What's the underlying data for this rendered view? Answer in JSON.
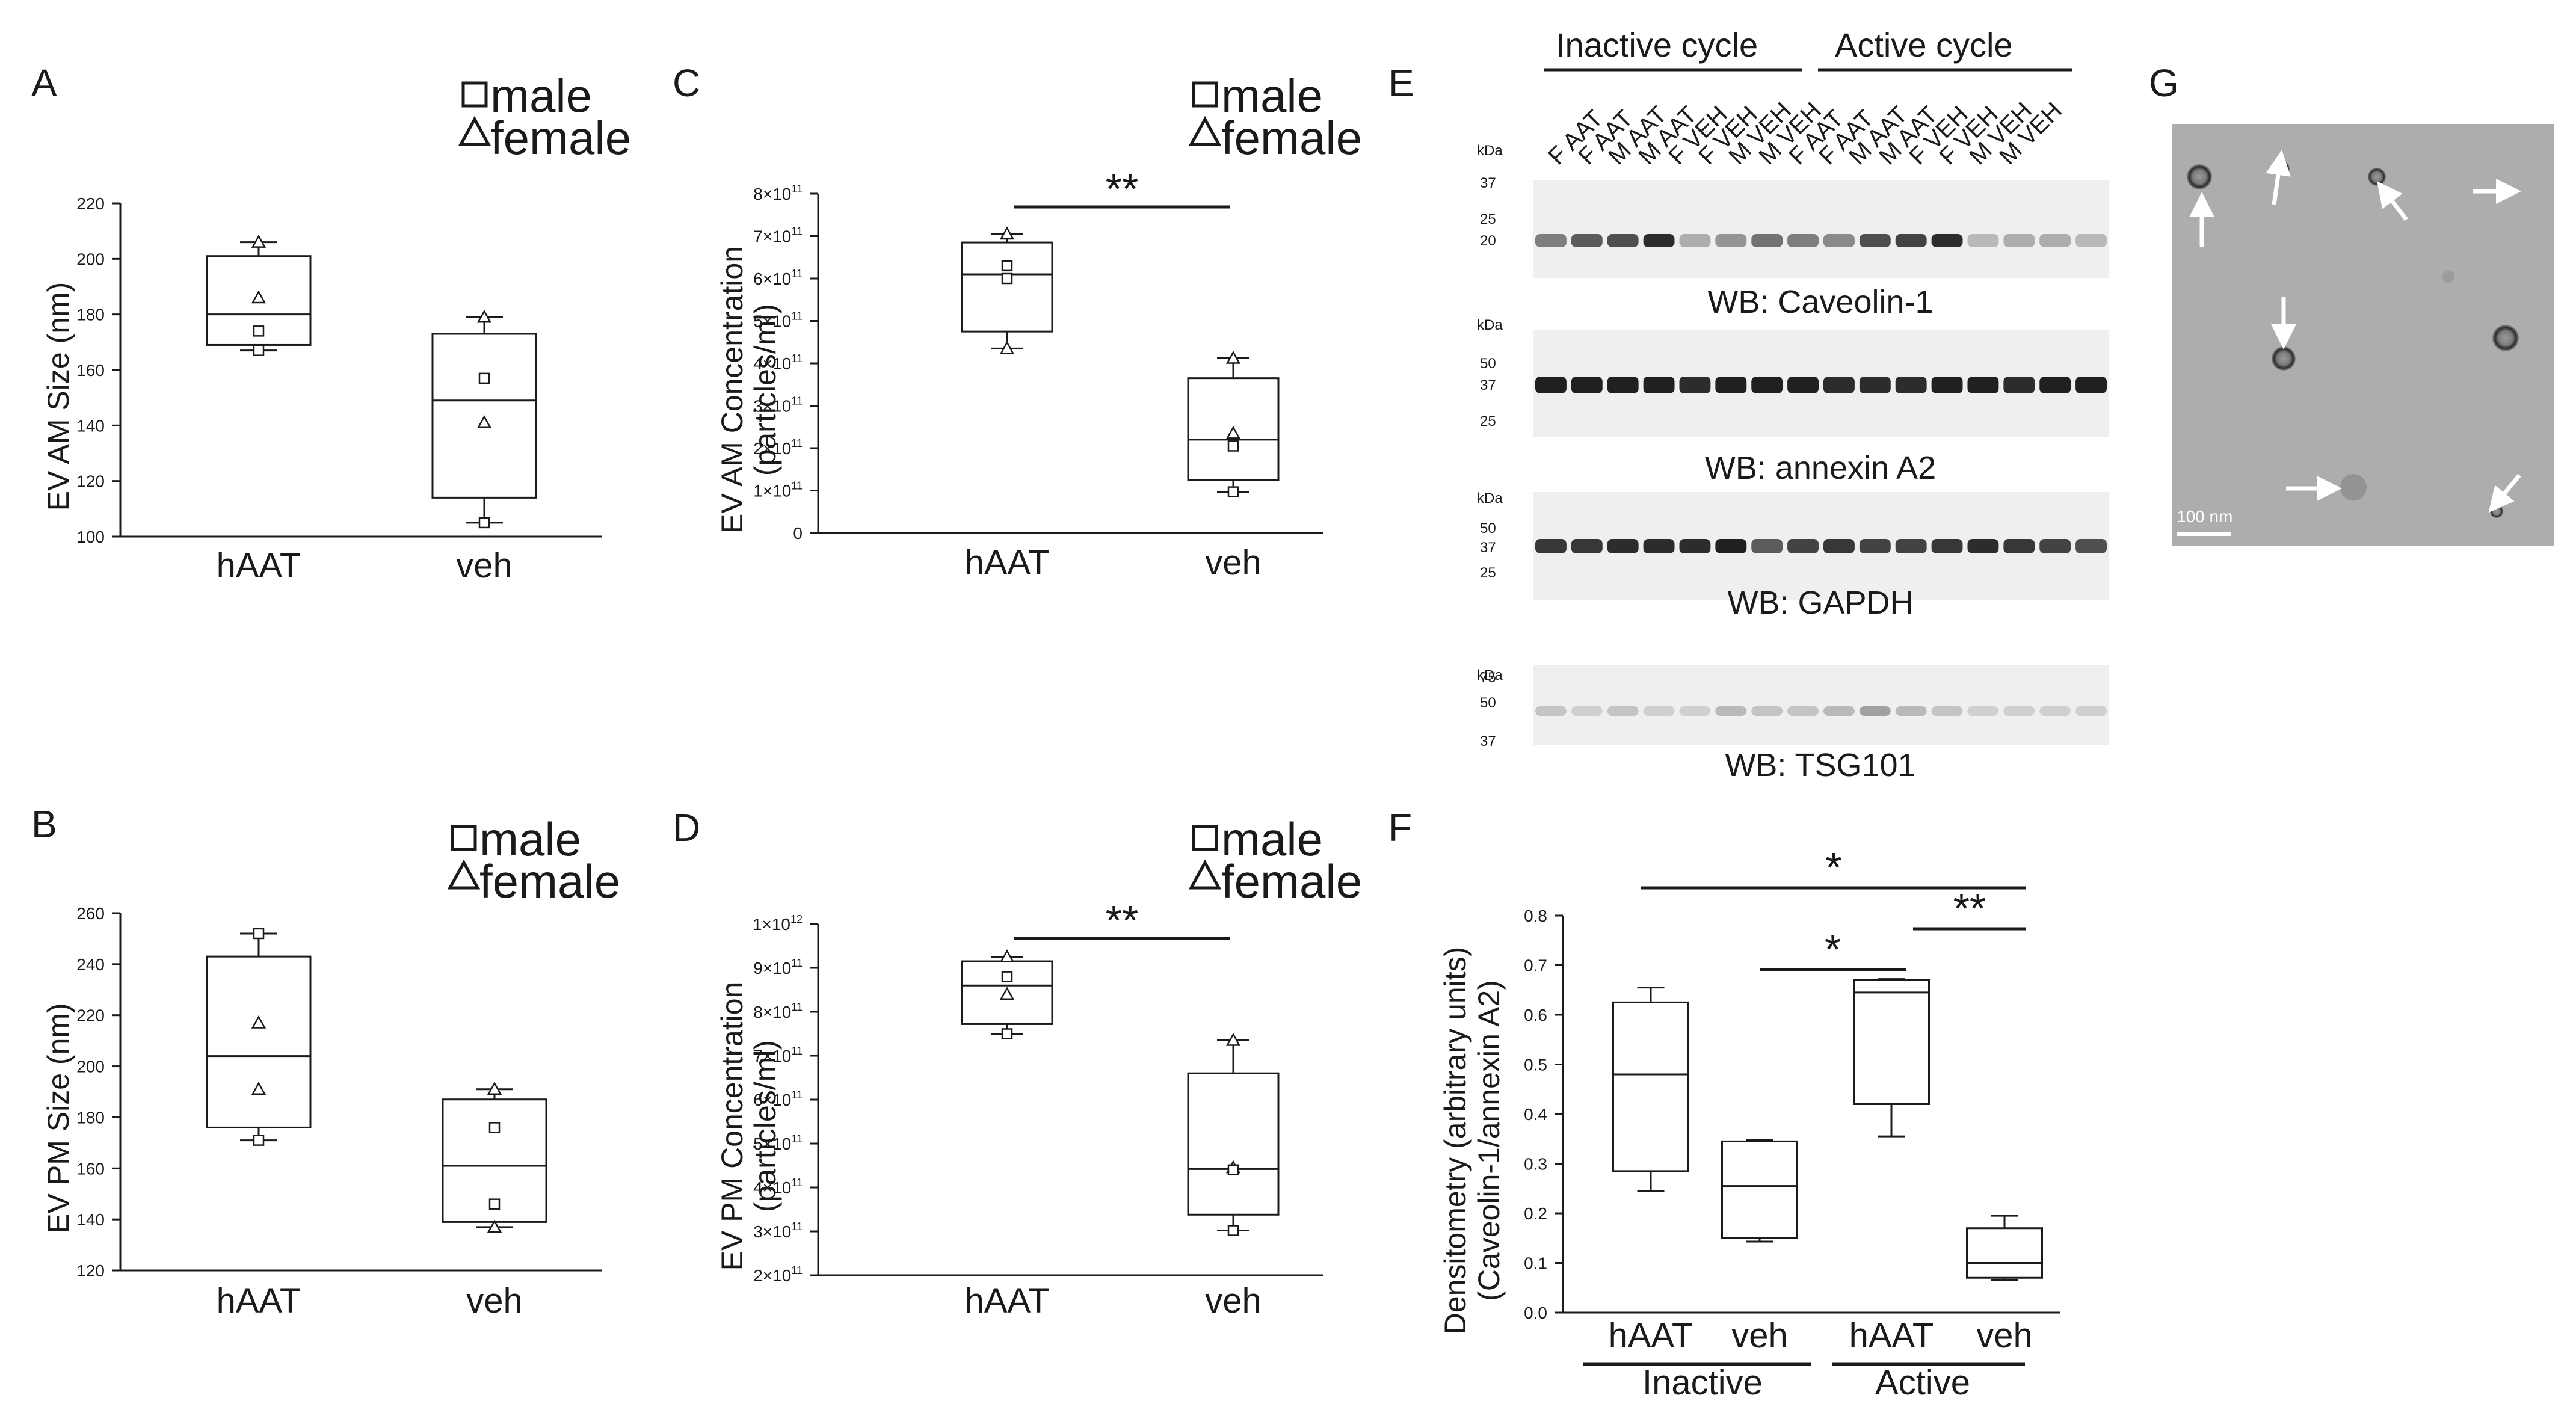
{
  "panel_letters": {
    "a": "A",
    "b": "B",
    "c": "C",
    "d": "D",
    "e": "E",
    "f": "F",
    "g": "G"
  },
  "legend": {
    "male": "male",
    "female": "female"
  },
  "colors": {
    "ink": "#1a1a1a",
    "blot_bg": "#f1f1f1",
    "em_bg": "#a9a9a9",
    "box_fill": "#ffffff"
  },
  "chart_data": [
    {
      "id": "A",
      "type": "box",
      "ylabel": "EV AM Size (nm)",
      "ylim": [
        100,
        220
      ],
      "yticks": [
        100,
        120,
        140,
        160,
        180,
        200,
        220
      ],
      "categories": [
        "hAAT",
        "veh"
      ],
      "boxes": [
        {
          "label": "hAAT",
          "whisker_low": 167,
          "q1": 169,
          "median": 180,
          "q3": 201,
          "whisker_high": 206,
          "points": [
            {
              "v": 206,
              "s": "f"
            },
            {
              "v": 186,
              "s": "f"
            },
            {
              "v": 174,
              "s": "m"
            },
            {
              "v": 167,
              "s": "m"
            }
          ]
        },
        {
          "label": "veh",
          "whisker_low": 105,
          "q1": 114,
          "median": 149,
          "q3": 173,
          "whisker_high": 179,
          "points": [
            {
              "v": 179,
              "s": "f"
            },
            {
              "v": 157,
              "s": "m"
            },
            {
              "v": 141,
              "s": "f"
            },
            {
              "v": 105,
              "s": "m"
            }
          ]
        }
      ]
    },
    {
      "id": "B",
      "type": "box",
      "ylabel": "EV PM Size (nm)",
      "ylim": [
        120,
        260
      ],
      "yticks": [
        120,
        140,
        160,
        180,
        200,
        220,
        240,
        260
      ],
      "categories": [
        "hAAT",
        "veh"
      ],
      "boxes": [
        {
          "label": "hAAT",
          "whisker_low": 171,
          "q1": 176,
          "median": 204,
          "q3": 243,
          "whisker_high": 252,
          "points": [
            {
              "v": 252,
              "s": "m"
            },
            {
              "v": 217,
              "s": "f"
            },
            {
              "v": 191,
              "s": "f"
            },
            {
              "v": 171,
              "s": "m"
            }
          ]
        },
        {
          "label": "veh",
          "whisker_low": 137,
          "q1": 139,
          "median": 161,
          "q3": 187,
          "whisker_high": 191,
          "points": [
            {
              "v": 191,
              "s": "f"
            },
            {
              "v": 176,
              "s": "m"
            },
            {
              "v": 146,
              "s": "m"
            },
            {
              "v": 137,
              "s": "f"
            }
          ]
        }
      ]
    },
    {
      "id": "C",
      "type": "box",
      "ylabel": "EV AM Concentration",
      "ylabel2": "(particles/ml)",
      "ylim": [
        0,
        8
      ],
      "yticks": [
        0,
        1,
        2,
        3,
        4,
        5,
        6,
        7,
        8
      ],
      "ytick_labels": [
        "0",
        "1×10",
        "2×10",
        "3×10",
        "4×10",
        "5×10",
        "6×10",
        "7×10",
        "8×10"
      ],
      "ytick_exp": "11",
      "categories": [
        "hAAT",
        "veh"
      ],
      "significance": "**",
      "boxes": [
        {
          "label": "hAAT",
          "whisker_low": 4.35,
          "q1": 4.75,
          "median": 6.1,
          "q3": 6.85,
          "whisker_high": 7.05,
          "points": [
            {
              "v": 7.05,
              "s": "f"
            },
            {
              "v": 6.3,
              "s": "m"
            },
            {
              "v": 6.0,
              "s": "m"
            },
            {
              "v": 4.35,
              "s": "f"
            }
          ]
        },
        {
          "label": "veh",
          "whisker_low": 0.97,
          "q1": 1.25,
          "median": 2.2,
          "q3": 3.65,
          "whisker_high": 4.12,
          "points": [
            {
              "v": 4.12,
              "s": "f"
            },
            {
              "v": 2.35,
              "s": "f"
            },
            {
              "v": 2.05,
              "s": "m"
            },
            {
              "v": 0.97,
              "s": "m"
            }
          ]
        }
      ]
    },
    {
      "id": "D",
      "type": "box",
      "ylabel": "EV PM Concentration",
      "ylabel2": "(particles/ml)",
      "ylim": [
        2,
        10
      ],
      "yticks": [
        2,
        3,
        4,
        5,
        6,
        7,
        8,
        9,
        10
      ],
      "ytick_labels": [
        "2×10",
        "3×10",
        "4×10",
        "5×10",
        "6×10",
        "7×10",
        "8×10",
        "9×10",
        "1×10"
      ],
      "ytick_exp": "11",
      "ytick_exp_last": "12",
      "categories": [
        "hAAT",
        "veh"
      ],
      "significance": "**",
      "boxes": [
        {
          "label": "hAAT",
          "whisker_low": 7.5,
          "q1": 7.72,
          "median": 8.6,
          "q3": 9.15,
          "whisker_high": 9.25,
          "points": [
            {
              "v": 9.25,
              "s": "f"
            },
            {
              "v": 8.8,
              "s": "m"
            },
            {
              "v": 8.4,
              "s": "f"
            },
            {
              "v": 7.5,
              "s": "m"
            }
          ]
        },
        {
          "label": "veh",
          "whisker_low": 3.02,
          "q1": 3.38,
          "median": 4.42,
          "q3": 6.6,
          "whisker_high": 7.35,
          "points": [
            {
              "v": 7.35,
              "s": "f"
            },
            {
              "v": 4.45,
              "s": "f"
            },
            {
              "v": 4.4,
              "s": "m"
            },
            {
              "v": 3.02,
              "s": "m"
            }
          ]
        }
      ]
    },
    {
      "id": "F",
      "type": "box",
      "ylabel": "Densitometry (arbitrary units)",
      "ylabel2": "(Caveolin-1/annexin A2)",
      "ylim": [
        0,
        0.8
      ],
      "yticks": [
        0,
        0.1,
        0.2,
        0.3,
        0.4,
        0.5,
        0.6,
        0.7,
        0.8
      ],
      "ytick_labels": [
        "0.0",
        "0.1",
        "0.2",
        "0.3",
        "0.4",
        "0.5",
        "0.6",
        "0.7",
        "0.8"
      ],
      "categories": [
        "hAAT",
        "veh",
        "hAAT",
        "veh"
      ],
      "groups": [
        "Inactive",
        "Active"
      ],
      "significance": [
        {
          "from": 0,
          "to": 3,
          "label": "*"
        },
        {
          "from": 1,
          "to": 2,
          "label": "*"
        },
        {
          "from": 2,
          "to": 3,
          "label": "**"
        }
      ],
      "boxes": [
        {
          "label": "hAAT",
          "whisker_low": 0.245,
          "q1": 0.285,
          "median": 0.48,
          "q3": 0.625,
          "whisker_high": 0.655,
          "points": []
        },
        {
          "label": "veh",
          "whisker_low": 0.143,
          "q1": 0.15,
          "median": 0.255,
          "q3": 0.345,
          "whisker_high": 0.348,
          "points": []
        },
        {
          "label": "hAAT",
          "whisker_low": 0.355,
          "q1": 0.42,
          "median": 0.645,
          "q3": 0.67,
          "whisker_high": 0.672,
          "points": []
        },
        {
          "label": "veh",
          "whisker_low": 0.065,
          "q1": 0.07,
          "median": 0.1,
          "q3": 0.17,
          "whisker_high": 0.195,
          "points": []
        }
      ]
    }
  ],
  "western_blot": {
    "cycle_labels": [
      "Inactive cycle",
      "Active cycle"
    ],
    "lanes": [
      "F AAT",
      "F AAT",
      "M AAT",
      "M AAT",
      "F VEH",
      "F VEH",
      "M VEH",
      "M VEH",
      "F AAT",
      "F AAT",
      "M AAT",
      "M AAT",
      "F VEH",
      "F VEH",
      "M VEH",
      "M VEH"
    ],
    "kda": "kDa",
    "blots": [
      {
        "label": "WB: Caveolin-1",
        "markers": [
          "37",
          "25",
          "20"
        ],
        "intensity": [
          0.55,
          0.7,
          0.75,
          0.9,
          0.35,
          0.45,
          0.6,
          0.55,
          0.5,
          0.75,
          0.8,
          0.9,
          0.3,
          0.35,
          0.35,
          0.3
        ]
      },
      {
        "label": "WB: annexin A2",
        "markers": [
          "50",
          "37",
          "25"
        ],
        "intensity": [
          0.95,
          0.95,
          0.95,
          0.95,
          0.9,
          0.95,
          0.95,
          0.95,
          0.9,
          0.9,
          0.9,
          0.95,
          0.95,
          0.9,
          0.95,
          0.95
        ]
      },
      {
        "label": "WB: GAPDH",
        "markers": [
          "50",
          "37",
          "25"
        ],
        "intensity": [
          0.85,
          0.85,
          0.9,
          0.9,
          0.9,
          0.95,
          0.7,
          0.8,
          0.85,
          0.8,
          0.8,
          0.85,
          0.9,
          0.85,
          0.8,
          0.75
        ]
      },
      {
        "label": "WB: TSG101",
        "markers": [
          "75",
          "50",
          "37"
        ],
        "intensity": [
          0.25,
          0.2,
          0.25,
          0.2,
          0.2,
          0.3,
          0.25,
          0.25,
          0.3,
          0.4,
          0.3,
          0.25,
          0.2,
          0.2,
          0.2,
          0.2
        ]
      }
    ]
  },
  "micrograph": {
    "scale_label": "100 nm"
  }
}
